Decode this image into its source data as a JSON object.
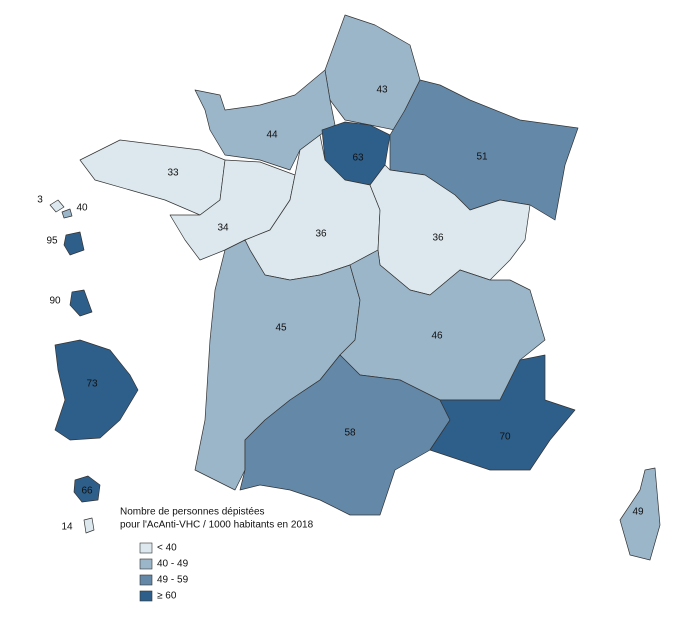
{
  "regions": [
    {
      "value": 43,
      "color": "#9bb5c9"
    },
    {
      "value": 44,
      "color": "#9bb5c9"
    },
    {
      "value": 63,
      "color": "#2e5f8a"
    },
    {
      "value": 51,
      "color": "#6488a8"
    },
    {
      "value": 33,
      "color": "#dce8ee"
    },
    {
      "value": 34,
      "color": "#dce8ee"
    },
    {
      "value": 36,
      "color": "#dce8ee"
    },
    {
      "value": 36,
      "color": "#dce8ee"
    },
    {
      "value": 45,
      "color": "#9bb5c9"
    },
    {
      "value": 46,
      "color": "#9bb5c9"
    },
    {
      "value": 58,
      "color": "#6488a8"
    },
    {
      "value": 70,
      "color": "#2e5f8a"
    },
    {
      "value": 49,
      "color": "#9bb5c9"
    },
    {
      "value": 95,
      "color": "#2e5f8a"
    },
    {
      "value": 90,
      "color": "#2e5f8a"
    },
    {
      "value": 73,
      "color": "#2e5f8a"
    },
    {
      "value": 66,
      "color": "#2e5f8a"
    },
    {
      "value": 14,
      "color": "#dce8ee"
    },
    {
      "value": 3,
      "color": "#dce8ee"
    },
    {
      "value": 40,
      "color": "#9bb5c9"
    }
  ],
  "legend": {
    "title": [
      "Nombre de personnes dépistées",
      "pour l'AcAnti-VHC / 1000 habitants en 2018"
    ],
    "items": [
      {
        "label": "< 40",
        "color": "#dce8ee"
      },
      {
        "label": "40 - 49",
        "color": "#9bb5c9"
      },
      {
        "label": "49 - 59",
        "color": "#6488a8"
      },
      {
        "label": "≥ 60",
        "color": "#2e5f8a"
      }
    ]
  }
}
